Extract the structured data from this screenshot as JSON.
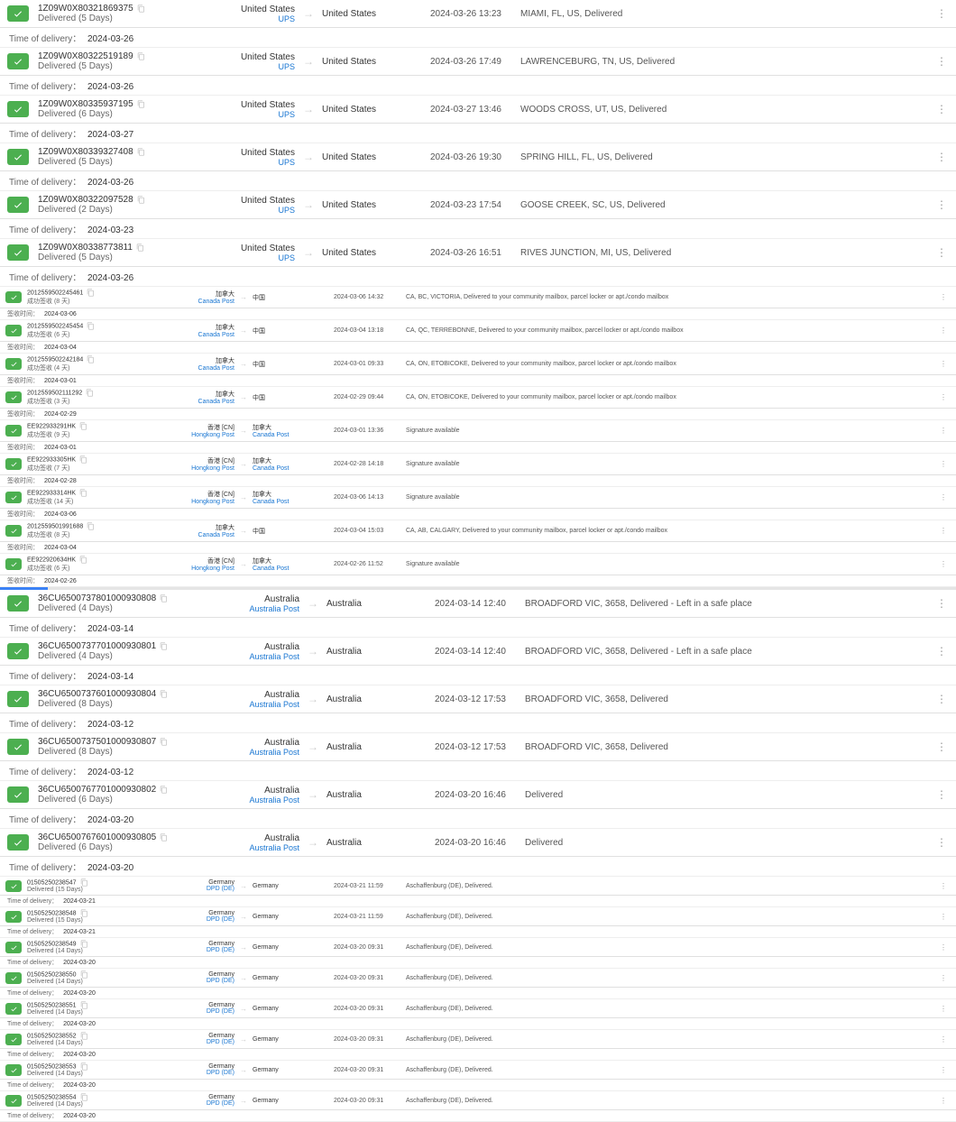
{
  "todLabel": "Time of delivery：",
  "todLabelCn": "签收时间：",
  "carriers": {
    "ups": "UPS",
    "auspost": "Australia Post",
    "dpd": "DPD (DE)",
    "canadapost": "Canada Post",
    "hongkongpost": "Hongkong Post"
  },
  "countries": {
    "us": "United States",
    "au": "Australia",
    "de": "Germany",
    "caCn": "加拿大",
    "cnCn": "中国",
    "hkCn": "香港 [CN]"
  },
  "colors": {
    "check": "#4caf50",
    "link": "#1976d2",
    "border": "#e0e0e0"
  },
  "rows": [
    {
      "v": "n",
      "tn": "1Z09W0X80321869375",
      "st": "Delivered (5 Days)",
      "oc": "us",
      "car": "ups",
      "dc": "us",
      "ts": "2024-03-26 13:23",
      "loc": "MIAMI, FL, US, Delivered",
      "tod": "2024-03-26"
    },
    {
      "v": "n",
      "tn": "1Z09W0X80322519189",
      "st": "Delivered (5 Days)",
      "oc": "us",
      "car": "ups",
      "dc": "us",
      "ts": "2024-03-26 17:49",
      "loc": "LAWRENCEBURG, TN, US, Delivered",
      "tod": "2024-03-26"
    },
    {
      "v": "n",
      "tn": "1Z09W0X80335937195",
      "st": "Delivered (6 Days)",
      "oc": "us",
      "car": "ups",
      "dc": "us",
      "ts": "2024-03-27 13:46",
      "loc": "WOODS CROSS, UT, US, Delivered",
      "tod": "2024-03-27"
    },
    {
      "v": "n",
      "tn": "1Z09W0X80339327408",
      "st": "Delivered (5 Days)",
      "oc": "us",
      "car": "ups",
      "dc": "us",
      "ts": "2024-03-26 19:30",
      "loc": "SPRING HILL, FL, US, Delivered",
      "tod": "2024-03-26"
    },
    {
      "v": "n",
      "tn": "1Z09W0X80322097528",
      "st": "Delivered (2 Days)",
      "oc": "us",
      "car": "ups",
      "dc": "us",
      "ts": "2024-03-23 17:54",
      "loc": "GOOSE CREEK, SC, US, Delivered",
      "tod": "2024-03-23"
    },
    {
      "v": "n",
      "tn": "1Z09W0X80338773811",
      "st": "Delivered (5 Days)",
      "oc": "us",
      "car": "ups",
      "dc": "us",
      "ts": "2024-03-26 16:51",
      "loc": "RIVES JUNCTION, MI, US, Delivered",
      "tod": "2024-03-26"
    },
    {
      "v": "s",
      "tn": "2012559502245461",
      "st": "成功签收 (8 天)",
      "oc": "caCn",
      "car": "canadapost",
      "dc": "cnCn",
      "ts": "2024-03-06 14:32",
      "loc": "CA, BC, VICTORIA, Delivered to your community mailbox, parcel locker or apt./condo mailbox",
      "tod": "2024-03-06",
      "cn": true
    },
    {
      "v": "s",
      "tn": "2012559502245454",
      "st": "成功签收 (6 天)",
      "oc": "caCn",
      "car": "canadapost",
      "dc": "cnCn",
      "ts": "2024-03-04 13:18",
      "loc": "CA, QC, TERREBONNE, Delivered to your community mailbox, parcel locker or apt./condo mailbox",
      "tod": "2024-03-04",
      "cn": true
    },
    {
      "v": "s",
      "tn": "2012559502242184",
      "st": "成功签收 (4 天)",
      "oc": "caCn",
      "car": "canadapost",
      "dc": "cnCn",
      "ts": "2024-03-01 09:33",
      "loc": "CA, ON, ETOBICOKE, Delivered to your community mailbox, parcel locker or apt./condo mailbox",
      "tod": "2024-03-01",
      "cn": true
    },
    {
      "v": "s",
      "tn": "2012559502111292",
      "st": "成功签收 (3 天)",
      "oc": "caCn",
      "car": "canadapost",
      "dc": "cnCn",
      "ts": "2024-02-29 09:44",
      "loc": "CA, ON, ETOBICOKE, Delivered to your community mailbox, parcel locker or apt./condo mailbox",
      "tod": "2024-02-29",
      "cn": true
    },
    {
      "v": "s",
      "tn": "EE922933291HK",
      "st": "成功签收 (9 天)",
      "oc": "hkCn",
      "car": "hongkongpost",
      "dc": "caCn",
      "dcar": "canadapost",
      "ts": "2024-03-01 13:36",
      "loc": "Signature available",
      "tod": "2024-03-01",
      "cn": true
    },
    {
      "v": "s",
      "tn": "EE922933305HK",
      "st": "成功签收 (7 天)",
      "oc": "hkCn",
      "car": "hongkongpost",
      "dc": "caCn",
      "dcar": "canadapost",
      "ts": "2024-02-28 14:18",
      "loc": "Signature available",
      "tod": "2024-02-28",
      "cn": true
    },
    {
      "v": "s",
      "tn": "EE922933314HK",
      "st": "成功签收 (14 天)",
      "oc": "hkCn",
      "car": "hongkongpost",
      "dc": "caCn",
      "dcar": "canadapost",
      "ts": "2024-03-06 14:13",
      "loc": "Signature available",
      "tod": "2024-03-06",
      "cn": true
    },
    {
      "v": "s",
      "tn": "2012559501991688",
      "st": "成功签收 (8 天)",
      "oc": "caCn",
      "car": "canadapost",
      "dc": "cnCn",
      "ts": "2024-03-04 15:03",
      "loc": "CA, AB, CALGARY, Delivered to your community mailbox, parcel locker or apt./condo mailbox",
      "tod": "2024-03-04",
      "cn": true
    },
    {
      "v": "s",
      "tn": "EE922920634HK",
      "st": "成功签收 (6 天)",
      "oc": "hkCn",
      "car": "hongkongpost",
      "dc": "caCn",
      "dcar": "canadapost",
      "ts": "2024-02-26 11:52",
      "loc": "Signature available",
      "tod": "2024-02-26",
      "cn": true
    },
    {
      "v": "m",
      "tn": "36CU6500737801000930808",
      "st": "Delivered (4 Days)",
      "oc": "au",
      "car": "auspost",
      "dc": "au",
      "ts": "2024-03-14 12:40",
      "loc": "BROADFORD VIC, 3658, Delivered - Left in a safe place",
      "tod": "2024-03-14"
    },
    {
      "v": "m",
      "tn": "36CU6500737701000930801",
      "st": "Delivered (4 Days)",
      "oc": "au",
      "car": "auspost",
      "dc": "au",
      "ts": "2024-03-14 12:40",
      "loc": "BROADFORD VIC, 3658, Delivered - Left in a safe place",
      "tod": "2024-03-14"
    },
    {
      "v": "m",
      "tn": "36CU6500737601000930804",
      "st": "Delivered (8 Days)",
      "oc": "au",
      "car": "auspost",
      "dc": "au",
      "ts": "2024-03-12 17:53",
      "loc": "BROADFORD VIC, 3658, Delivered",
      "tod": "2024-03-12"
    },
    {
      "v": "m",
      "tn": "36CU6500737501000930807",
      "st": "Delivered (8 Days)",
      "oc": "au",
      "car": "auspost",
      "dc": "au",
      "ts": "2024-03-12 17:53",
      "loc": "BROADFORD VIC, 3658, Delivered",
      "tod": "2024-03-12"
    },
    {
      "v": "m",
      "tn": "36CU6500767701000930802",
      "st": "Delivered (6 Days)",
      "oc": "au",
      "car": "auspost",
      "dc": "au",
      "ts": "2024-03-20 16:46",
      "loc": "Delivered",
      "tod": "2024-03-20"
    },
    {
      "v": "m",
      "tn": "36CU6500767601000930805",
      "st": "Delivered (6 Days)",
      "oc": "au",
      "car": "auspost",
      "dc": "au",
      "ts": "2024-03-20 16:46",
      "loc": "Delivered",
      "tod": "2024-03-20"
    },
    {
      "v": "s2",
      "tn": "01505250238547",
      "st": "Delivered (15 Days)",
      "oc": "de",
      "car": "dpd",
      "dc": "de",
      "ts": "2024-03-21 11:59",
      "loc": "Aschaffenburg (DE), Delivered.",
      "tod": "2024-03-21"
    },
    {
      "v": "s2",
      "tn": "01505250238548",
      "st": "Delivered (15 Days)",
      "oc": "de",
      "car": "dpd",
      "dc": "de",
      "ts": "2024-03-21 11:59",
      "loc": "Aschaffenburg (DE), Delivered.",
      "tod": "2024-03-21"
    },
    {
      "v": "s2",
      "tn": "01505250238549",
      "st": "Delivered (14 Days)",
      "oc": "de",
      "car": "dpd",
      "dc": "de",
      "ts": "2024-03-20 09:31",
      "loc": "Aschaffenburg (DE), Delivered.",
      "tod": "2024-03-20"
    },
    {
      "v": "s2",
      "tn": "01505250238550",
      "st": "Delivered (14 Days)",
      "oc": "de",
      "car": "dpd",
      "dc": "de",
      "ts": "2024-03-20 09:31",
      "loc": "Aschaffenburg (DE), Delivered.",
      "tod": "2024-03-20"
    },
    {
      "v": "s2",
      "tn": "01505250238551",
      "st": "Delivered (14 Days)",
      "oc": "de",
      "car": "dpd",
      "dc": "de",
      "ts": "2024-03-20 09:31",
      "loc": "Aschaffenburg (DE), Delivered.",
      "tod": "2024-03-20"
    },
    {
      "v": "s2",
      "tn": "01505250238552",
      "st": "Delivered (14 Days)",
      "oc": "de",
      "car": "dpd",
      "dc": "de",
      "ts": "2024-03-20 09:31",
      "loc": "Aschaffenburg (DE), Delivered.",
      "tod": "2024-03-20"
    },
    {
      "v": "s2",
      "tn": "01505250238553",
      "st": "Delivered (14 Days)",
      "oc": "de",
      "car": "dpd",
      "dc": "de",
      "ts": "2024-03-20 09:31",
      "loc": "Aschaffenburg (DE), Delivered.",
      "tod": "2024-03-20"
    },
    {
      "v": "s2",
      "tn": "01505250238554",
      "st": "Delivered (14 Days)",
      "oc": "de",
      "car": "dpd",
      "dc": "de",
      "ts": "2024-03-20 09:31",
      "loc": "Aschaffenburg (DE), Delivered.",
      "tod": "2024-03-20"
    }
  ]
}
